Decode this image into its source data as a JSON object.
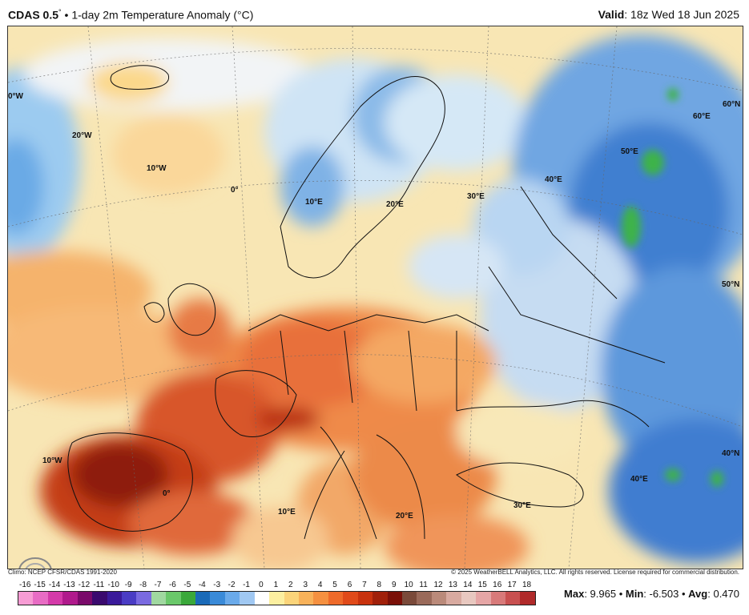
{
  "header": {
    "product": "CDAS 0.5",
    "degree_symbol": "°",
    "separator": "•",
    "description": "1-day 2m Temperature Anomaly (°C)",
    "valid_label": "Valid",
    "valid_time": ": 18z Wed 18 Jun 2025"
  },
  "map": {
    "longitude_labels": [
      "0°W",
      "20°W",
      "10°W",
      "0°",
      "10°E",
      "20°E",
      "30°E",
      "40°E",
      "50°E",
      "60°E",
      "10°W",
      "0°",
      "10°E",
      "20°E",
      "30°E",
      "40°E"
    ],
    "latitude_labels": [
      "60°N",
      "50°N",
      "40°N"
    ],
    "colors": {
      "warm_strong": "#a52a0a",
      "warm_mid": "#e0552a",
      "warm_light": "#f3a35a",
      "neutral": "#fbe8b0",
      "cool_light": "#c9e4f6",
      "cool_mid": "#5aa0de",
      "cool_strong": "#1f5fb8",
      "green": "#3cb34a"
    }
  },
  "footer": {
    "climo": "Climo: NCEP CFSR/CDAS 1991-2020",
    "copyright": "© 2025 WeatherBELL Analytics, LLC. All rights reserved. License required for commercial distribution.",
    "logo_text": "WeatherBELL"
  },
  "colorbar": {
    "ticks": [
      "-16",
      "-15",
      "-14",
      "-13",
      "-12",
      "-11",
      "-10",
      "-9",
      "-8",
      "-7",
      "-6",
      "-5",
      "-4",
      "-3",
      "-2",
      "-1",
      "0",
      "1",
      "2",
      "3",
      "4",
      "5",
      "6",
      "7",
      "8",
      "9",
      "10",
      "11",
      "12",
      "13",
      "14",
      "15",
      "16",
      "17",
      "18"
    ],
    "colors": [
      "#f79cd4",
      "#e86cc4",
      "#d43aa9",
      "#b01a8c",
      "#7a0a6a",
      "#3a0a6e",
      "#3a1a9a",
      "#4a3cc4",
      "#7a6ae0",
      "#a0d8a0",
      "#6ac86a",
      "#3aa83a",
      "#1a6ab8",
      "#3a8ad8",
      "#6aaaea",
      "#a0c8f2",
      "#ffffff",
      "#fcefa0",
      "#fbd47a",
      "#f8b25a",
      "#f59040",
      "#ee6a2a",
      "#e04a1a",
      "#c8320e",
      "#a0200a",
      "#7a1008",
      "#7a4a3a",
      "#9a6a5a",
      "#ba8a7a",
      "#d8aaa0",
      "#e8c8c0",
      "#e6a6a6",
      "#d87a7a",
      "#c85050",
      "#b02a2a"
    ]
  },
  "stats": {
    "max_label": "Max",
    "max_value": ": 9.965",
    "min_label": "Min",
    "min_value": ": -6.503",
    "avg_label": "Avg",
    "avg_value": ": 0.470"
  }
}
